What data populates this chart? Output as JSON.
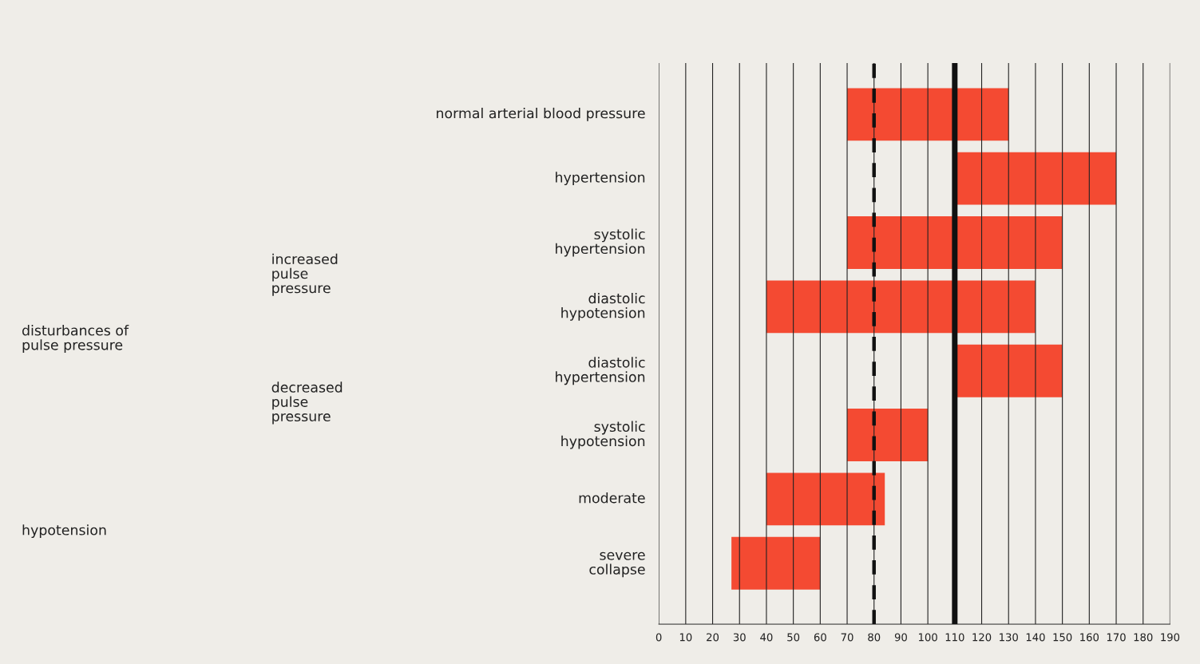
{
  "chart_data": {
    "type": "bar",
    "orientation": "horizontal",
    "categories": [
      "normal arterial blood pressure",
      "hypertension",
      "systolic\nhypertension",
      "diastolic\nhypotension",
      "diastolic\nhypertension",
      "systolic\nhypotension",
      "moderate",
      "severe\ncollapse"
    ],
    "base": [
      70,
      110,
      70,
      40,
      110,
      70,
      40,
      27
    ],
    "values": [
      60,
      60,
      80,
      100,
      40,
      30,
      44,
      33
    ],
    "color": "#f44a32",
    "xlim": [
      0,
      190
    ],
    "xticks": [
      0,
      10,
      20,
      30,
      40,
      50,
      60,
      70,
      80,
      90,
      100,
      110,
      120,
      130,
      140,
      150,
      160,
      170,
      180,
      190
    ],
    "grid": "x",
    "tick_labels": "x",
    "ref_lines": [
      {
        "axis": "x",
        "value": 80,
        "color": "#111111",
        "line_style": "dashed"
      },
      {
        "axis": "x",
        "value": 110,
        "color": "#111111",
        "line_style": "solid"
      }
    ],
    "annotations": [
      "disturbances of\npulse pressure",
      "increased\npulse\npressure",
      "decreased\npulse\npressure",
      "hypotension"
    ]
  }
}
